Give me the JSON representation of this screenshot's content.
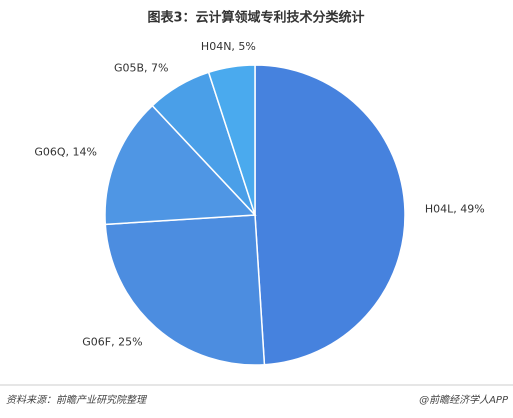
{
  "chart_data": {
    "type": "pie",
    "title": "图表3：云计算领域专利技术分类统计",
    "values": [
      49,
      25,
      14,
      7,
      5
    ],
    "value_labels": [
      "H04L, 49%",
      "G06F, 25%",
      "G06Q, 14%",
      "G05B, 7%",
      "H04N, 5%"
    ],
    "colors": [
      "#4682de",
      "#4c8de0",
      "#4f96e4",
      "#4a9fe8",
      "#4aaaee"
    ],
    "source": "资料来源：前瞻产业研究院整理",
    "credit": "@前瞻经济学人APP"
  }
}
